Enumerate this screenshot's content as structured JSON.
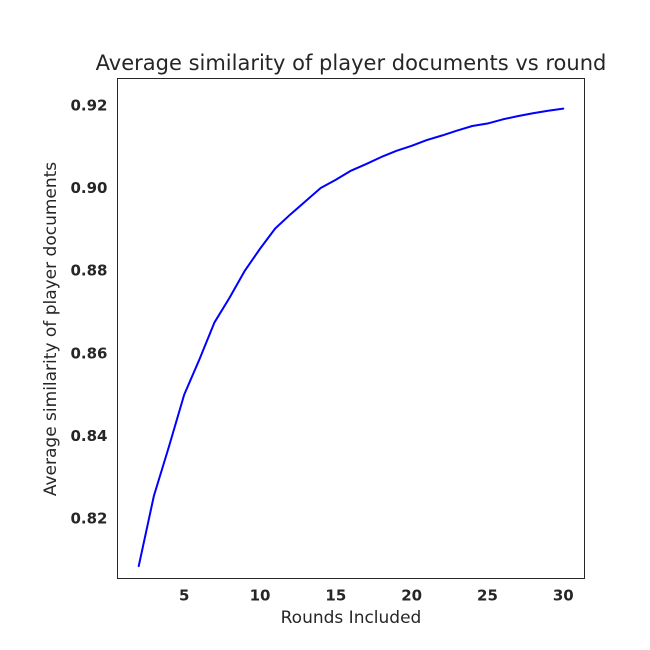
{
  "chart_data": {
    "type": "line",
    "title": "Average similarity of player documents vs round",
    "xlabel": "Rounds Included",
    "ylabel": "Average similarity of player documents",
    "xlim": [
      0.6,
      31.4
    ],
    "ylim": [
      0.8055,
      0.9265
    ],
    "x_ticks": [
      5,
      10,
      15,
      20,
      25,
      30
    ],
    "x_tick_labels": [
      "5",
      "10",
      "15",
      "20",
      "25",
      "30"
    ],
    "y_ticks": [
      0.82,
      0.84,
      0.86,
      0.88,
      0.9,
      0.92
    ],
    "y_tick_labels": [
      "0.82",
      "0.84",
      "0.86",
      "0.88",
      "0.90",
      "0.92"
    ],
    "grid": false,
    "legend": "none",
    "series": [
      {
        "color": "#0000ff",
        "x": [
          2,
          3,
          4,
          5,
          6,
          7,
          8,
          9,
          10,
          11,
          12,
          13,
          14,
          15,
          16,
          17,
          18,
          19,
          20,
          21,
          22,
          23,
          24,
          25,
          26,
          27,
          28,
          29,
          30
        ],
        "y": [
          0.8085,
          0.8255,
          0.8375,
          0.85,
          0.8585,
          0.8675,
          0.8735,
          0.88,
          0.8853,
          0.8902,
          0.8936,
          0.8968,
          0.9,
          0.902,
          0.9042,
          0.9058,
          0.9075,
          0.909,
          0.9102,
          0.9116,
          0.9127,
          0.9139,
          0.915,
          0.9156,
          0.9166,
          0.9174,
          0.9181,
          0.9187,
          0.9192
        ]
      }
    ]
  }
}
